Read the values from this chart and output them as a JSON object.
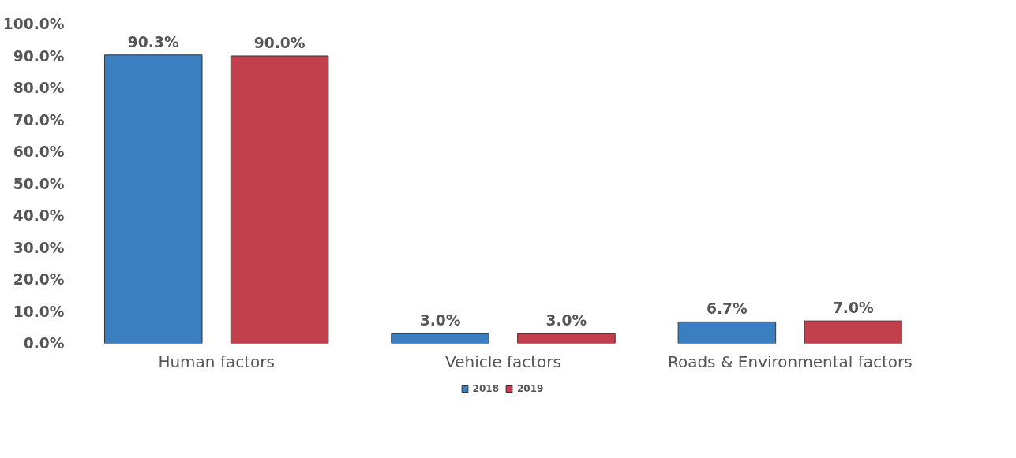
{
  "chart_data": {
    "type": "bar",
    "categories": [
      "Human factors",
      "Vehicle factors",
      "Roads & Environmental factors"
    ],
    "series": [
      {
        "name": "2018",
        "color": "#3b7fc0",
        "values": [
          90.3,
          3.0,
          6.7
        ],
        "value_labels": [
          "90.3%",
          "3.0%",
          "6.7%"
        ]
      },
      {
        "name": "2019",
        "color": "#c2404b",
        "values": [
          90.0,
          3.0,
          7.0
        ],
        "value_labels": [
          "90.0%",
          "3.0%",
          "7.0%"
        ]
      }
    ],
    "ylim": [
      0,
      100
    ],
    "yticks": [
      {
        "value": 0,
        "label": "0.0%"
      },
      {
        "value": 10,
        "label": "10.0%"
      },
      {
        "value": 20,
        "label": "20.0%"
      },
      {
        "value": 30,
        "label": "30.0%"
      },
      {
        "value": 40,
        "label": "40.0%"
      },
      {
        "value": 50,
        "label": "50.0%"
      },
      {
        "value": 60,
        "label": "60.0%"
      },
      {
        "value": 70,
        "label": "70.0%"
      },
      {
        "value": 80,
        "label": "80.0%"
      },
      {
        "value": 90,
        "label": "90.0%"
      },
      {
        "value": 100,
        "label": "100.0%"
      }
    ],
    "grid": false,
    "legend": "bottom"
  }
}
